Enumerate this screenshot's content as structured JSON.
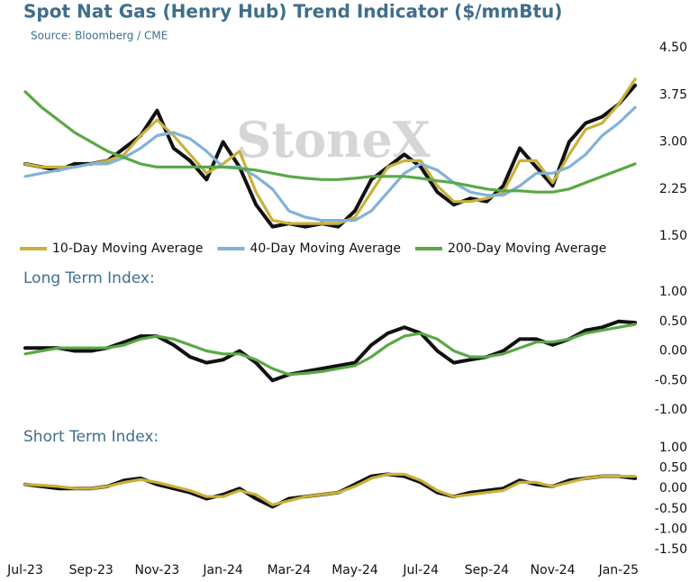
{
  "chart_data": [
    {
      "type": "line",
      "title": "Spot Nat Gas (Henry Hub) Trend Indicator ($/mmBtu)",
      "subtitle": "Source: Bloomberg / CME",
      "watermark": "StoneX",
      "ylim": [
        1.5,
        4.5
      ],
      "yticks": [
        {
          "value": 4.5,
          "label": "4.50"
        },
        {
          "value": 3.75,
          "label": "3.75"
        },
        {
          "value": 3,
          "label": "3.00"
        },
        {
          "value": 2.25,
          "label": "2.25"
        },
        {
          "value": 1.5,
          "label": "1.50"
        }
      ],
      "legend": "bottom",
      "series": [
        {
          "color": "#111111",
          "values": [
            2.65,
            2.6,
            2.55,
            2.65,
            2.65,
            2.7,
            2.9,
            3.1,
            3.5,
            2.9,
            2.7,
            2.4,
            3.0,
            2.6,
            2.0,
            1.65,
            1.7,
            1.65,
            1.7,
            1.65,
            1.9,
            2.4,
            2.6,
            2.8,
            2.6,
            2.2,
            2.0,
            2.1,
            2.05,
            2.3,
            2.9,
            2.6,
            2.3,
            3.0,
            3.3,
            3.4,
            3.6,
            3.9
          ]
        },
        {
          "name": "10-Day Moving Average",
          "color": "#c9b13a",
          "values": [
            2.65,
            2.6,
            2.6,
            2.6,
            2.65,
            2.7,
            2.8,
            3.1,
            3.35,
            3.1,
            2.8,
            2.5,
            2.65,
            2.85,
            2.2,
            1.75,
            1.7,
            1.7,
            1.7,
            1.7,
            1.8,
            2.2,
            2.6,
            2.7,
            2.7,
            2.3,
            2.05,
            2.05,
            2.1,
            2.2,
            2.7,
            2.7,
            2.35,
            2.8,
            3.2,
            3.3,
            3.6,
            4.0
          ]
        },
        {
          "name": "40-Day Moving Average",
          "color": "#82b2d8",
          "values": [
            2.45,
            2.5,
            2.55,
            2.6,
            2.65,
            2.65,
            2.75,
            2.9,
            3.1,
            3.15,
            3.05,
            2.85,
            2.6,
            2.6,
            2.45,
            2.25,
            1.9,
            1.8,
            1.75,
            1.75,
            1.75,
            1.9,
            2.2,
            2.5,
            2.65,
            2.55,
            2.35,
            2.2,
            2.15,
            2.15,
            2.3,
            2.5,
            2.5,
            2.6,
            2.8,
            3.1,
            3.3,
            3.55
          ]
        },
        {
          "name": "200-Day Moving Average",
          "color": "#5aa845",
          "values": [
            3.8,
            3.55,
            3.35,
            3.15,
            3.0,
            2.85,
            2.75,
            2.65,
            2.6,
            2.6,
            2.6,
            2.6,
            2.6,
            2.58,
            2.55,
            2.5,
            2.45,
            2.42,
            2.4,
            2.4,
            2.42,
            2.45,
            2.45,
            2.45,
            2.42,
            2.38,
            2.35,
            2.3,
            2.25,
            2.22,
            2.22,
            2.2,
            2.2,
            2.25,
            2.35,
            2.45,
            2.55,
            2.65
          ]
        }
      ]
    },
    {
      "type": "line",
      "title": "Long Term Index:",
      "ylim": [
        -1,
        1
      ],
      "yticks": [
        {
          "value": 1,
          "label": "1.00"
        },
        {
          "value": 0.5,
          "label": "0.50"
        },
        {
          "value": 0,
          "label": "0.00"
        },
        {
          "value": -0.5,
          "label": "-0.50"
        },
        {
          "value": -1,
          "label": "-1.00"
        }
      ],
      "series": [
        {
          "color": "#111111",
          "values": [
            0.05,
            0.05,
            0.05,
            0.0,
            0.0,
            0.05,
            0.15,
            0.25,
            0.25,
            0.1,
            -0.1,
            -0.2,
            -0.15,
            0.0,
            -0.2,
            -0.5,
            -0.4,
            -0.35,
            -0.3,
            -0.25,
            -0.2,
            0.1,
            0.3,
            0.4,
            0.3,
            0.0,
            -0.2,
            -0.15,
            -0.1,
            0.0,
            0.2,
            0.2,
            0.1,
            0.2,
            0.35,
            0.4,
            0.5,
            0.48
          ]
        },
        {
          "color": "#5aa845",
          "values": [
            -0.05,
            0.0,
            0.05,
            0.05,
            0.05,
            0.05,
            0.1,
            0.2,
            0.25,
            0.2,
            0.1,
            0.0,
            -0.05,
            -0.05,
            -0.15,
            -0.3,
            -0.4,
            -0.38,
            -0.35,
            -0.3,
            -0.25,
            -0.1,
            0.1,
            0.25,
            0.3,
            0.2,
            0.0,
            -0.1,
            -0.1,
            -0.05,
            0.05,
            0.15,
            0.15,
            0.2,
            0.3,
            0.35,
            0.4,
            0.45
          ]
        }
      ]
    },
    {
      "type": "line",
      "title": "Short Term Index:",
      "ylim": [
        -1.5,
        1
      ],
      "yticks": [
        {
          "value": 1,
          "label": "1.00"
        },
        {
          "value": 0.5,
          "label": "0.50"
        },
        {
          "value": 0,
          "label": "0.00"
        },
        {
          "value": -0.5,
          "label": "-0.50"
        },
        {
          "value": -1,
          "label": "-1.00"
        },
        {
          "value": -1.5,
          "label": "-1.50"
        }
      ],
      "categories": [
        "Jul-23",
        null,
        null,
        null,
        "Sep-23",
        null,
        null,
        null,
        "Nov-23",
        null,
        null,
        null,
        "Jan-24",
        null,
        null,
        null,
        "Mar-24",
        null,
        null,
        null,
        "May-24",
        null,
        null,
        null,
        "Jul-24",
        null,
        null,
        null,
        "Sep-24",
        null,
        null,
        null,
        "Nov-24",
        null,
        null,
        null,
        "Jan-25",
        null
      ],
      "series": [
        {
          "color": "#111111",
          "values": [
            0.1,
            0.05,
            0.0,
            0.0,
            0.0,
            0.05,
            0.2,
            0.25,
            0.1,
            0.0,
            -0.1,
            -0.25,
            -0.15,
            0.0,
            -0.25,
            -0.45,
            -0.25,
            -0.2,
            -0.15,
            -0.1,
            0.1,
            0.3,
            0.35,
            0.3,
            0.15,
            -0.1,
            -0.2,
            -0.1,
            -0.05,
            0.0,
            0.2,
            0.1,
            0.05,
            0.2,
            0.25,
            0.3,
            0.3,
            0.25
          ]
        },
        {
          "color": "#c9b13a",
          "values": [
            0.1,
            0.08,
            0.05,
            0.0,
            0.0,
            0.05,
            0.15,
            0.22,
            0.15,
            0.05,
            -0.05,
            -0.2,
            -0.2,
            -0.05,
            -0.15,
            -0.4,
            -0.3,
            -0.2,
            -0.15,
            -0.1,
            0.05,
            0.25,
            0.35,
            0.35,
            0.2,
            -0.05,
            -0.2,
            -0.15,
            -0.1,
            -0.05,
            0.15,
            0.15,
            0.05,
            0.15,
            0.25,
            0.3,
            0.3,
            0.3
          ]
        }
      ]
    }
  ]
}
